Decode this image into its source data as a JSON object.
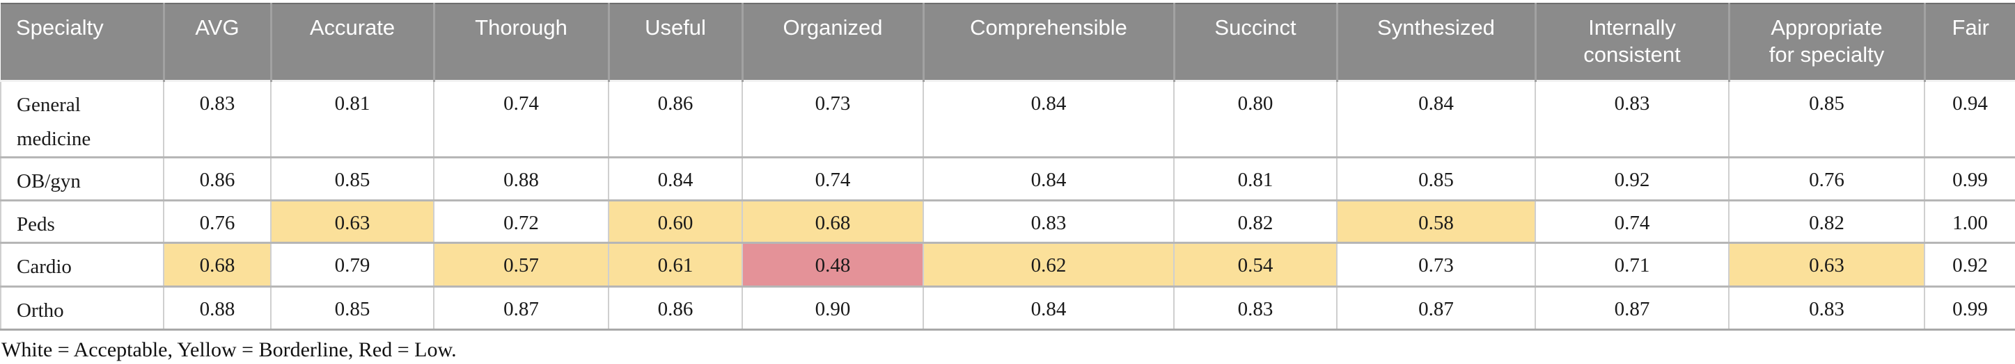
{
  "table": {
    "columns": [
      "Specialty",
      "AVG",
      "Accurate",
      "Thorough",
      "Useful",
      "Organized",
      "Comprehensible",
      "Succinct",
      "Synthesized",
      "Internally\nconsistent",
      "Appropriate\nfor specialty",
      "Fair"
    ],
    "rows": [
      {
        "specialty": "General\nmedicine",
        "values": [
          "0.83",
          "0.81",
          "0.74",
          "0.86",
          "0.73",
          "0.84",
          "0.80",
          "0.84",
          "0.83",
          "0.85",
          "0.94"
        ],
        "levels": [
          "acceptable",
          "acceptable",
          "acceptable",
          "acceptable",
          "acceptable",
          "acceptable",
          "acceptable",
          "acceptable",
          "acceptable",
          "acceptable",
          "acceptable"
        ]
      },
      {
        "specialty": "OB/gyn",
        "values": [
          "0.86",
          "0.85",
          "0.88",
          "0.84",
          "0.74",
          "0.84",
          "0.81",
          "0.85",
          "0.92",
          "0.76",
          "0.99"
        ],
        "levels": [
          "acceptable",
          "acceptable",
          "acceptable",
          "acceptable",
          "acceptable",
          "acceptable",
          "acceptable",
          "acceptable",
          "acceptable",
          "acceptable",
          "acceptable"
        ]
      },
      {
        "specialty": "Peds",
        "values": [
          "0.76",
          "0.63",
          "0.72",
          "0.60",
          "0.68",
          "0.83",
          "0.82",
          "0.58",
          "0.74",
          "0.82",
          "1.00"
        ],
        "levels": [
          "acceptable",
          "borderline",
          "acceptable",
          "borderline",
          "borderline",
          "acceptable",
          "acceptable",
          "borderline",
          "acceptable",
          "acceptable",
          "acceptable"
        ]
      },
      {
        "specialty": "Cardio",
        "values": [
          "0.68",
          "0.79",
          "0.57",
          "0.61",
          "0.48",
          "0.62",
          "0.54",
          "0.73",
          "0.71",
          "0.63",
          "0.92"
        ],
        "levels": [
          "borderline",
          "acceptable",
          "borderline",
          "borderline",
          "low",
          "borderline",
          "borderline",
          "acceptable",
          "acceptable",
          "borderline",
          "acceptable"
        ]
      },
      {
        "specialty": "Ortho",
        "values": [
          "0.88",
          "0.85",
          "0.87",
          "0.86",
          "0.90",
          "0.84",
          "0.83",
          "0.87",
          "0.87",
          "0.83",
          "0.99"
        ],
        "levels": [
          "acceptable",
          "acceptable",
          "acceptable",
          "acceptable",
          "acceptable",
          "acceptable",
          "acceptable",
          "acceptable",
          "acceptable",
          "acceptable",
          "acceptable"
        ]
      }
    ],
    "footnote": "White = Acceptable, Yellow = Borderline, Red = Low.",
    "colors": {
      "header_bg": "#8b8b8b",
      "header_text": "#ffffff",
      "acceptable": "#ffffff",
      "borderline": "#fbe09a",
      "low": "#e49298"
    }
  }
}
